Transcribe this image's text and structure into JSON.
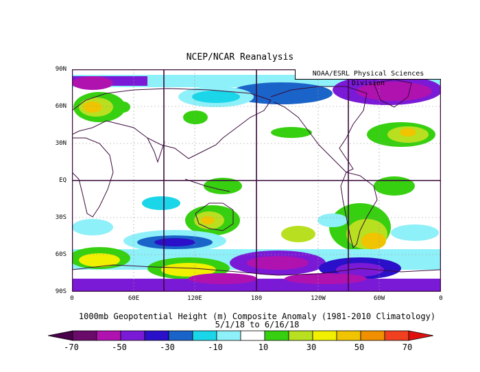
{
  "title": "NCEP/NCAR Reanalysis",
  "credit": "NOAA/ESRL Physical Sciences Division",
  "caption_line1": "1000mb Geopotential Height (m) Composite Anomaly (1981-2010 Climatology)",
  "caption_line2": "5/1/18  to 6/16/18",
  "lat_labels": [
    "90N",
    "60N",
    "30N",
    "EQ",
    "30S",
    "60S",
    "90S"
  ],
  "lon_labels": [
    "0",
    "60E",
    "120E",
    "180",
    "120W",
    "60W",
    "0"
  ],
  "colorbar": {
    "labels": [
      "-70",
      "-50",
      "-30",
      "-10",
      "10",
      "30",
      "50",
      "70"
    ],
    "colors": [
      "#6a0a6a",
      "#b012b0",
      "#7a1ad6",
      "#2a10c8",
      "#1a63c8",
      "#1ad6e8",
      "#8ef0f8",
      "#ffffff",
      "#36d010",
      "#b8e020",
      "#f0f000",
      "#f0c400",
      "#f09000",
      "#f04020"
    ],
    "arrow_left_color": "#4a004a",
    "arrow_right_color": "#e01010"
  },
  "colors": {
    "map_frame": "#3a0a3a",
    "coastline": "#3a0a3a",
    "grid": "#999999"
  }
}
